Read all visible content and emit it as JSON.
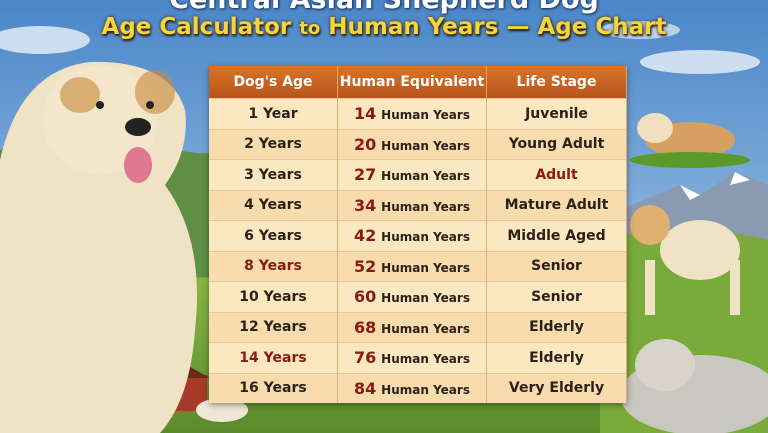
{
  "header": {
    "title": "Central Asian Shepherd Dog",
    "subtitle_parts": [
      "Age Calculator",
      "to",
      "Human Years — Age Chart"
    ]
  },
  "table": {
    "columns": [
      "Dog's Age",
      "Human Equivalent",
      "Life Stage"
    ],
    "rows": [
      {
        "age": "1 Year",
        "human": 14,
        "unit": "Human Years",
        "stage": "Juvenile"
      },
      {
        "age": "2 Years",
        "human": 20,
        "unit": "Human Years",
        "stage": "Young Adult"
      },
      {
        "age": "3 Years",
        "human": 27,
        "unit": "Human Years",
        "stage": "Adult"
      },
      {
        "age": "4 Years",
        "human": 34,
        "unit": "Human Years",
        "stage": "Mature Adult"
      },
      {
        "age": "6 Years",
        "human": 42,
        "unit": "Human Years",
        "stage": "Middle Aged"
      },
      {
        "age": "8 Years",
        "human": 52,
        "unit": "Human Years",
        "stage": "Senior"
      },
      {
        "age": "10 Years",
        "human": 60,
        "unit": "Human Years",
        "stage": "Senior"
      },
      {
        "age": "12 Years",
        "human": 68,
        "unit": "Human Years",
        "stage": "Elderly"
      },
      {
        "age": "14 Years",
        "human": 76,
        "unit": "Human Years",
        "stage": "Elderly"
      },
      {
        "age": "16 Years",
        "human": 84,
        "unit": "Human Years",
        "stage": "Very Elderly"
      }
    ]
  }
}
